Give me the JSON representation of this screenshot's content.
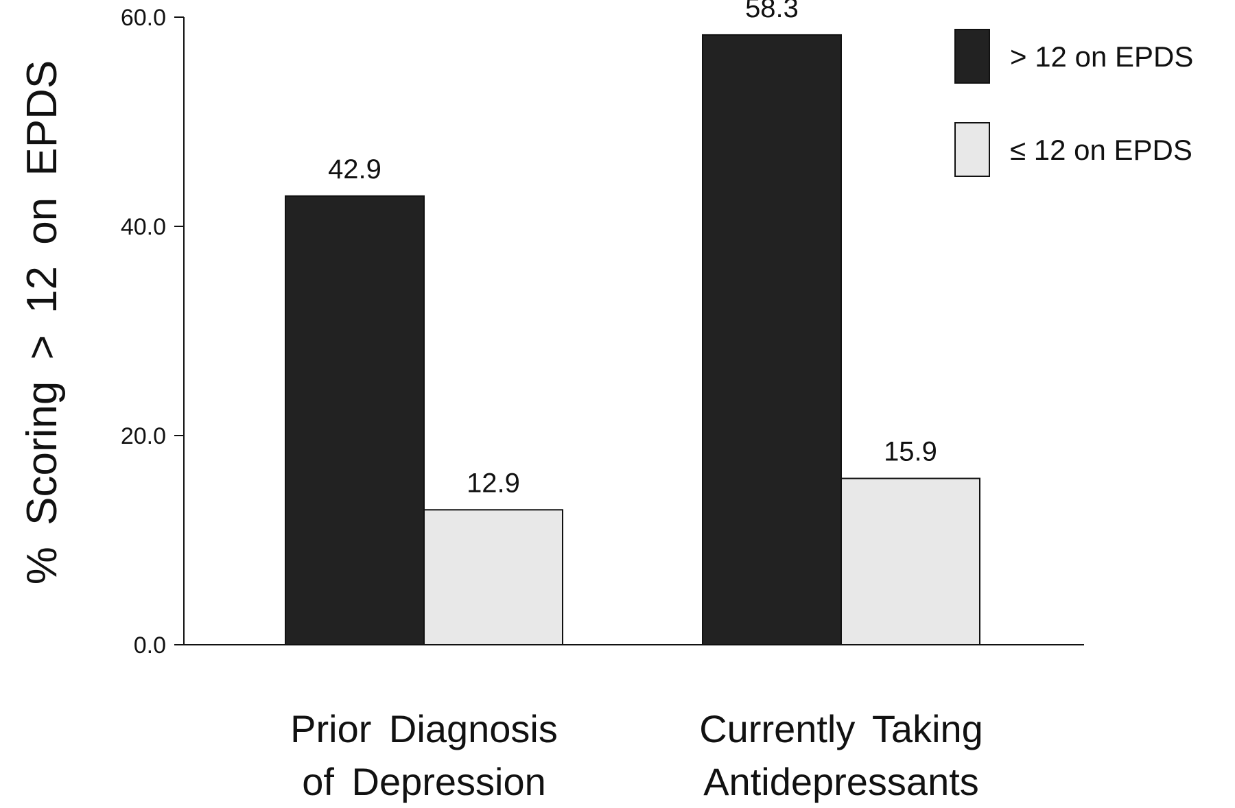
{
  "chart_data": {
    "type": "bar",
    "title": "",
    "xlabel": "",
    "ylabel": "% Scoring > 12 on EPDS",
    "categories": [
      [
        "Prior Diagnosis",
        "of Depression"
      ],
      [
        "Currently Taking",
        "Antidepressants"
      ]
    ],
    "series": [
      {
        "name": "> 12 on EPDS",
        "values": [
          42.9,
          58.3
        ],
        "color": "#222222"
      },
      {
        "name": "≤ 12 on EPDS",
        "values": [
          12.9,
          15.9
        ],
        "color": "#e8e8e8"
      }
    ],
    "value_labels": [
      [
        "42.9",
        "58.3"
      ],
      [
        "12.9",
        "15.9"
      ]
    ],
    "ylim": [
      0,
      60
    ],
    "yticks": [
      0,
      20,
      40,
      60
    ],
    "ytick_labels": [
      "0.0",
      "20.0",
      "40.0",
      "60.0"
    ],
    "legend": "top-right",
    "grid": false
  }
}
